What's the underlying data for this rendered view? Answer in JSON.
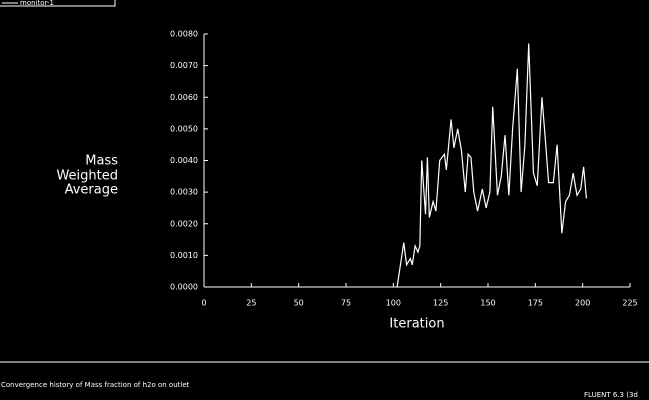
{
  "chart_data": {
    "type": "line",
    "legend_label": "monitor-1",
    "title": "Convergence history of Mass fraction of h2o on outlet",
    "footer": "FLUENT 6.3 (3d",
    "xlabel": "Iteration",
    "ylabel": [
      "Mass",
      "Weighted",
      "Average"
    ],
    "color": "#ffffff",
    "x": [
      102,
      105.5,
      107,
      109,
      110,
      111.5,
      113,
      114,
      115,
      117,
      118,
      119,
      121,
      122.5,
      124.5,
      127,
      128,
      130.5,
      132,
      134,
      136,
      138,
      139.5,
      141,
      142.5,
      144.5,
      147,
      149,
      151,
      152.5,
      155,
      157,
      159,
      161,
      163,
      165.5,
      167.5,
      169.5,
      171.5,
      174,
      176,
      178.5,
      180.5,
      182,
      184.5,
      186.5,
      189,
      191,
      193,
      195,
      197,
      199,
      200.5,
      202
    ],
    "values": [
      0.0,
      0.0014,
      0.0007,
      0.0009,
      0.0007,
      0.0013,
      0.0011,
      0.0013,
      0.004,
      0.0023,
      0.0041,
      0.0022,
      0.0027,
      0.0024,
      0.004,
      0.0042,
      0.0037,
      0.0053,
      0.0044,
      0.005,
      0.0043,
      0.003,
      0.0042,
      0.0041,
      0.003,
      0.0024,
      0.0031,
      0.0025,
      0.003,
      0.0057,
      0.0029,
      0.0035,
      0.0048,
      0.0029,
      0.005,
      0.0069,
      0.003,
      0.0045,
      0.0077,
      0.0036,
      0.0032,
      0.006,
      0.0045,
      0.0033,
      0.0033,
      0.0045,
      0.0017,
      0.0027,
      0.0029,
      0.0036,
      0.0029,
      0.0031,
      0.0038,
      0.0028
    ],
    "xlim": [
      0,
      225
    ],
    "xticks": [
      0,
      25,
      50,
      75,
      100,
      125,
      150,
      175,
      200,
      225
    ],
    "ylim": [
      0,
      0.008
    ],
    "yticks": [
      {
        "value": 0,
        "label": "0.0000"
      },
      {
        "value": 0.001,
        "label": "0.0010"
      },
      {
        "value": 0.002,
        "label": "0.0020"
      },
      {
        "value": 0.003,
        "label": "0.0030"
      },
      {
        "value": 0.004,
        "label": "0.0040"
      },
      {
        "value": 0.005,
        "label": "0.0050"
      },
      {
        "value": 0.006,
        "label": "0.0060"
      },
      {
        "value": 0.007,
        "label": "0.0070"
      },
      {
        "value": 0.008,
        "label": "0.0080"
      }
    ]
  }
}
